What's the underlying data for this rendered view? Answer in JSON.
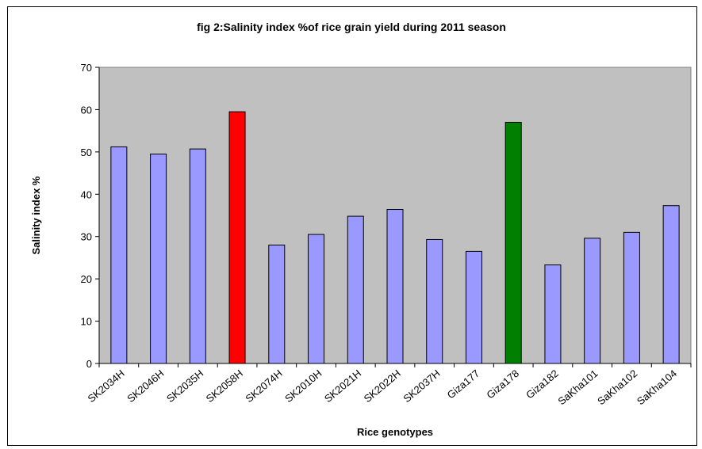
{
  "chart_data": {
    "type": "bar",
    "title": "fig 2:Salinity index %of rice grain yield during 2011 season",
    "xlabel": "Rice genotypes",
    "ylabel": "Salinity index %",
    "ylim": [
      0,
      70
    ],
    "yticks": [
      0,
      10,
      20,
      30,
      40,
      50,
      60,
      70
    ],
    "categories": [
      "SK2034H",
      "SK2046H",
      "SK2035H",
      "SK2058H",
      "SK2074H",
      "SK2010H",
      "SK2021H",
      "SK2022H",
      "SK2037H",
      "Giza177",
      "Giza178",
      "Giza182",
      "SaKha101",
      "SaKha102",
      "SaKha104"
    ],
    "values": [
      51.2,
      49.5,
      50.7,
      59.5,
      28.0,
      30.5,
      34.8,
      36.4,
      29.3,
      26.5,
      57.0,
      23.3,
      29.6,
      31.0,
      37.3
    ],
    "bar_colors": [
      "#9999ff",
      "#9999ff",
      "#9999ff",
      "#ff0000",
      "#9999ff",
      "#9999ff",
      "#9999ff",
      "#9999ff",
      "#9999ff",
      "#9999ff",
      "#008000",
      "#9999ff",
      "#9999ff",
      "#9999ff",
      "#9999ff"
    ],
    "plot_background": "#c0c0c0",
    "grid": false,
    "legend": "none"
  }
}
